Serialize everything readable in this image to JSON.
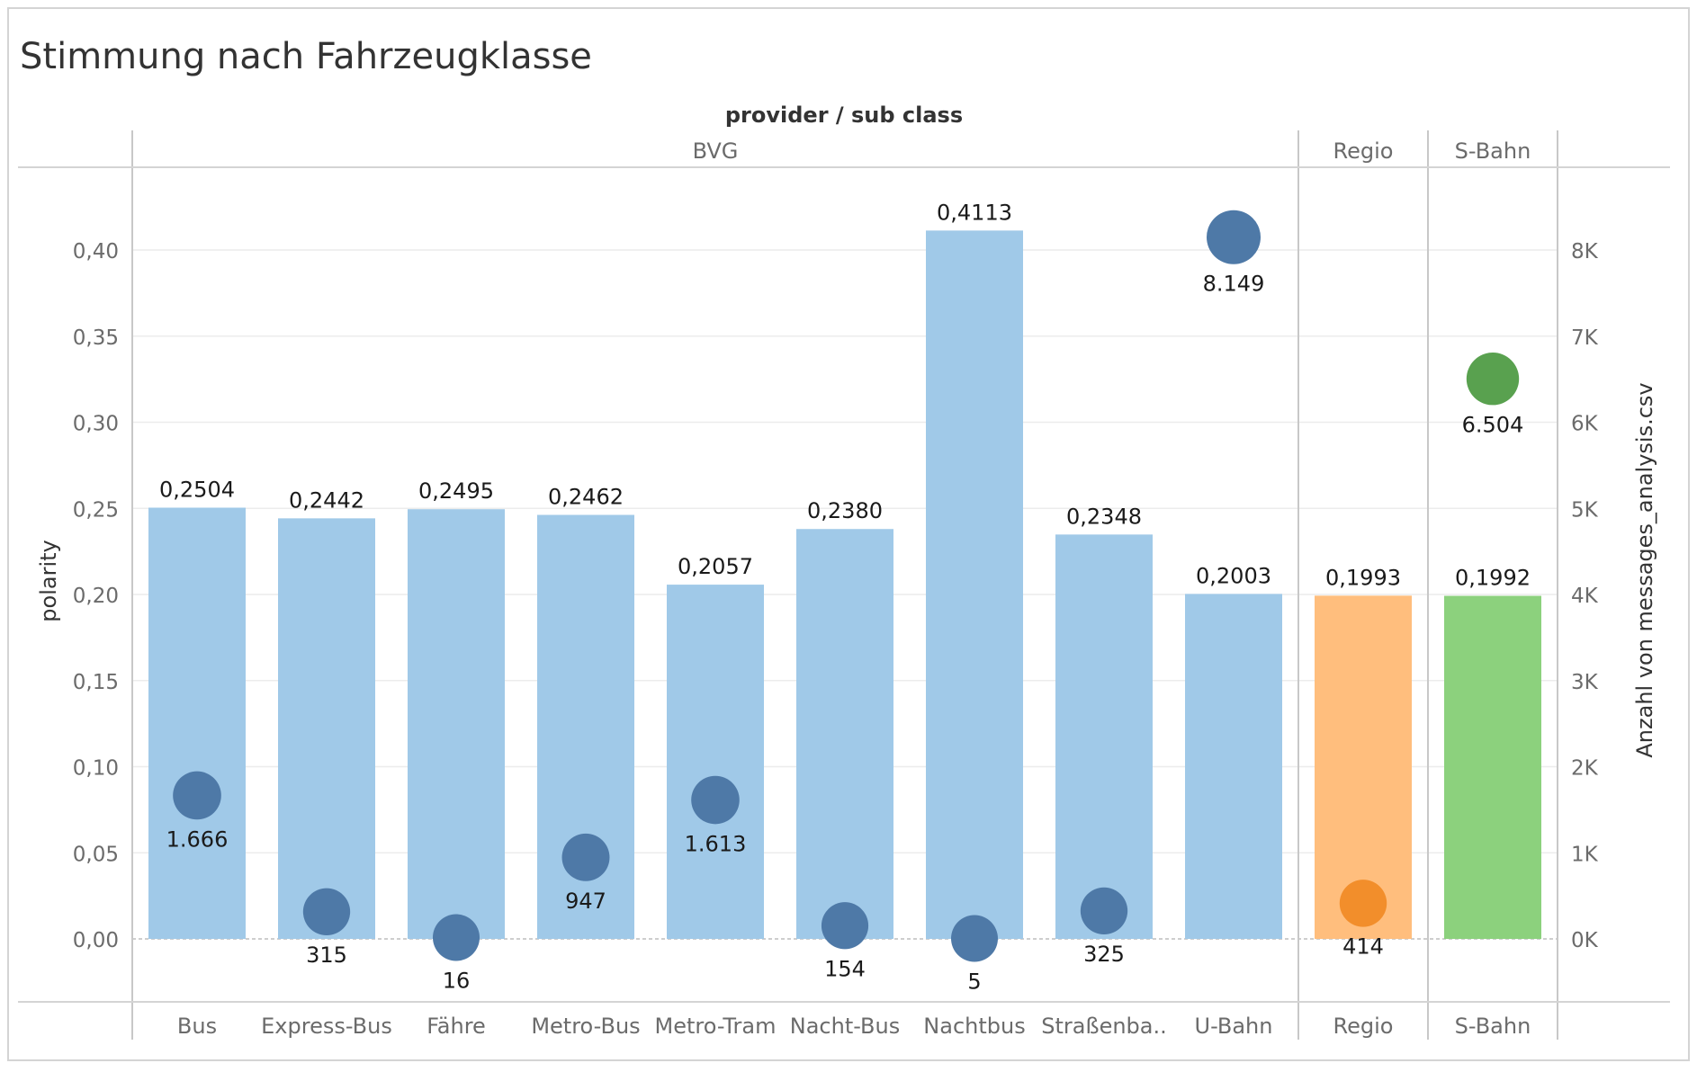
{
  "chart_data": {
    "type": "bar",
    "title": "Stimmung nach Fahrzeugklasse",
    "header_title": "provider  /  sub class",
    "groups": [
      {
        "name": "BVG",
        "categories": [
          "Bus",
          "Express-Bus",
          "Fähre",
          "Metro-Bus",
          "Metro-Tram",
          "Nacht-Bus",
          "Nachtbus",
          "Straßenba..",
          "U-Bahn"
        ]
      },
      {
        "name": "Regio",
        "categories": [
          "Regio"
        ]
      },
      {
        "name": "S-Bahn",
        "categories": [
          "S-Bahn"
        ]
      }
    ],
    "categories": [
      "Bus",
      "Express-Bus",
      "Fähre",
      "Metro-Bus",
      "Metro-Tram",
      "Nacht-Bus",
      "Nachtbus",
      "Straßenba..",
      "U-Bahn",
      "Regio",
      "S-Bahn"
    ],
    "ylabel": "polarity",
    "y2label": "Anzahl von messages_analysis.csv",
    "ylim": [
      0,
      0.4
    ],
    "y2lim": [
      0,
      8000
    ],
    "yticks": [
      {
        "value": 0.0,
        "label": "0,00"
      },
      {
        "value": 0.05,
        "label": "0,05"
      },
      {
        "value": 0.1,
        "label": "0,10"
      },
      {
        "value": 0.15,
        "label": "0,15"
      },
      {
        "value": 0.2,
        "label": "0,20"
      },
      {
        "value": 0.25,
        "label": "0,25"
      },
      {
        "value": 0.3,
        "label": "0,30"
      },
      {
        "value": 0.35,
        "label": "0,35"
      },
      {
        "value": 0.4,
        "label": "0,40"
      }
    ],
    "y2ticks": [
      {
        "value": 0,
        "label": "0K"
      },
      {
        "value": 1000,
        "label": "1K"
      },
      {
        "value": 2000,
        "label": "2K"
      },
      {
        "value": 3000,
        "label": "3K"
      },
      {
        "value": 4000,
        "label": "4K"
      },
      {
        "value": 5000,
        "label": "5K"
      },
      {
        "value": 6000,
        "label": "6K"
      },
      {
        "value": 7000,
        "label": "7K"
      },
      {
        "value": 8000,
        "label": "8K"
      }
    ],
    "series": [
      {
        "kind": "bar",
        "values": [
          0.2504,
          0.2442,
          0.2495,
          0.2462,
          0.2057,
          0.238,
          0.4113,
          0.2348,
          0.2003,
          0.1993,
          0.1992
        ],
        "labels": [
          "0,2504",
          "0,2442",
          "0,2495",
          "0,2462",
          "0,2057",
          "0,2380",
          "0,4113",
          "0,2348",
          "0,2003",
          "0,1993",
          "0,1992"
        ]
      },
      {
        "kind": "circle",
        "axis": "right",
        "values": [
          1666,
          315,
          16,
          947,
          1613,
          154,
          5,
          325,
          8149,
          414,
          6504
        ],
        "labels": [
          "1.666",
          "315",
          "16",
          "947",
          "1.613",
          "154",
          "5",
          "325",
          "8.149",
          "414",
          "6.504"
        ]
      }
    ],
    "colors": {
      "BVG_bar": "#a0c9e8",
      "Regio_bar": "#ffbe7d",
      "S-Bahn_bar": "#8cd17d",
      "BVG_circle": "#4e79a7",
      "Regio_circle": "#f28e2b",
      "S-Bahn_circle": "#59a14f"
    },
    "grid": true,
    "legend": "none"
  }
}
